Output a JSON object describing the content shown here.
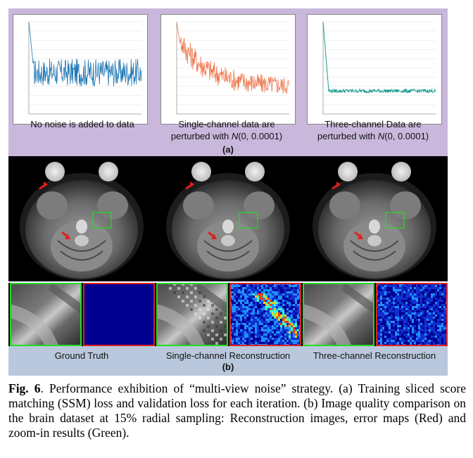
{
  "panel_a": {
    "captions": [
      {
        "line1": "No noise is added to data",
        "line2": ""
      },
      {
        "line1": "Single-channel data are",
        "line2_pre": "perturbed with ",
        "line2_em": "N",
        "line2_post": "(0, 0.0001)"
      },
      {
        "line1": "Three-channel Data are",
        "line2_pre": "perturbed with ",
        "line2_em": "N",
        "line2_post": "(0, 0.0001)"
      }
    ],
    "label": "(a)"
  },
  "panel_b": {
    "captions": [
      "Ground Truth",
      "Single-channel Reconstruction",
      "Three-channel Reconstruction"
    ],
    "label": "(b)"
  },
  "figure_caption": {
    "label": "Fig. 6",
    "text": ". Performance exhibition of “multi-view noise” strategy. (a) Training sliced score matching (SSM) loss and validation loss for each iteration. (b) Image quality comparison on the brain dataset at 15% radial sampling: Reconstruction images, error maps (Red) and zoom-in results (Green)."
  },
  "colors": {
    "chart1": "#1f77b4",
    "chart2": "#f07850",
    "chart3": "#1a9a90",
    "panel_a_bg": "#c9b8dc",
    "panel_b_bg": "#b9c8dc",
    "roi_green": "#22dd22",
    "err_red": "#e02020"
  },
  "chart_data": [
    {
      "type": "line",
      "title": "No noise is added to data",
      "series": [
        {
          "name": "loss",
          "shape": "spike-then-noisy-plateau",
          "start": 1.0,
          "plateau": 0.45,
          "noise": 0.15
        }
      ]
    },
    {
      "type": "line",
      "title": "Single-channel data are perturbed with N(0, 0.0001)",
      "series": [
        {
          "name": "loss",
          "shape": "decaying-noisy",
          "start": 1.0,
          "plateau": 0.3,
          "noise": 0.12
        }
      ]
    },
    {
      "type": "line",
      "title": "Three-channel Data are perturbed with N(0, 0.0001)",
      "series": [
        {
          "name": "loss",
          "shape": "fast-drop-smooth",
          "start": 1.0,
          "plateau": 0.25,
          "noise": 0.02
        }
      ]
    }
  ]
}
